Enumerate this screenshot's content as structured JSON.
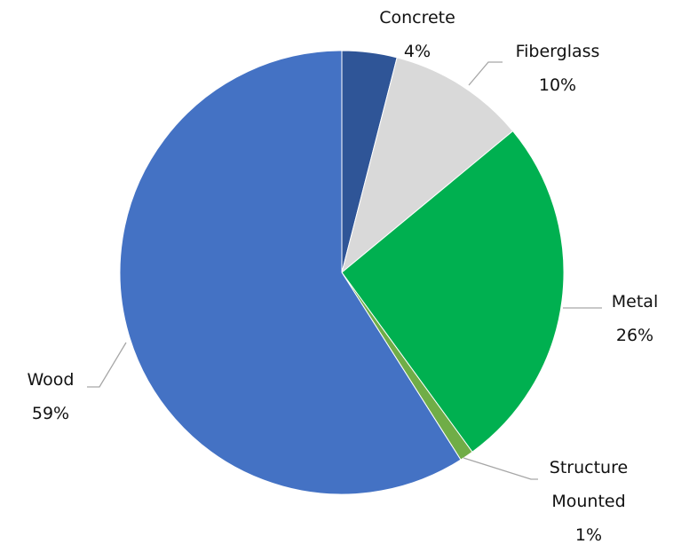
{
  "chart_data": {
    "type": "pie",
    "categories": [
      "Concrete",
      "Fiberglass",
      "Metal",
      "Structure Mounted",
      "Wood"
    ],
    "values": [
      4,
      10,
      26,
      1,
      59
    ],
    "value_labels": [
      "4%",
      "10%",
      "26%",
      "1%",
      "59%"
    ],
    "colors": [
      "#2f5597",
      "#d9d9d9",
      "#00b050",
      "#70ad47",
      "#4472c4"
    ]
  }
}
